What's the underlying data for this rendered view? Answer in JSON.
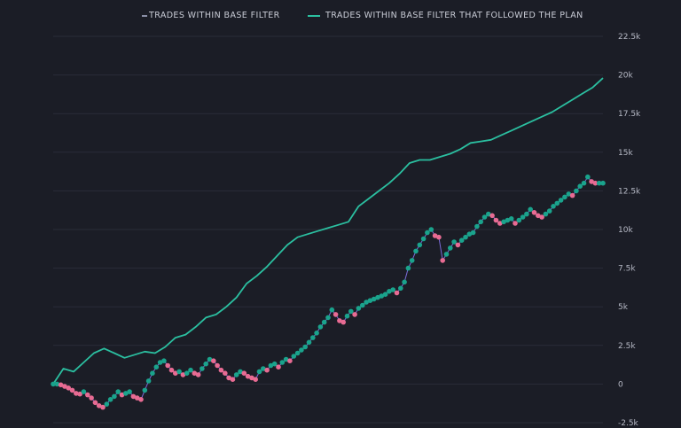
{
  "chart_data": {
    "type": "line",
    "title": "",
    "xlabel": "",
    "ylabel": "",
    "ylim": [
      -2500,
      22500
    ],
    "yticks": [
      {
        "value": -2500,
        "label": "-2.5k"
      },
      {
        "value": 0,
        "label": "0"
      },
      {
        "value": 2500,
        "label": "2.5k"
      },
      {
        "value": 5000,
        "label": "5k"
      },
      {
        "value": 7500,
        "label": "7.5k"
      },
      {
        "value": 10000,
        "label": "10k"
      },
      {
        "value": 12500,
        "label": "12.5k"
      },
      {
        "value": 15000,
        "label": "15k"
      },
      {
        "value": 17500,
        "label": "17.5k"
      },
      {
        "value": 20000,
        "label": "20k"
      },
      {
        "value": 22500,
        "label": "22.5k"
      }
    ],
    "grid": true,
    "legend_position": "top",
    "colors": {
      "background": "#1b1d26",
      "grid": "#2a2d38",
      "plan_line": "#2bbfa0",
      "base_line": "#7b6cd9",
      "gain_marker": "#1aa38c",
      "loss_marker": "#e86b93"
    },
    "series": [
      {
        "name": "TRADES WITHIN BASE FILTER",
        "values": [
          0,
          0,
          -50,
          -150,
          -250,
          -400,
          -600,
          -650,
          -500,
          -700,
          -900,
          -1200,
          -1400,
          -1500,
          -1300,
          -1000,
          -800,
          -500,
          -700,
          -600,
          -500,
          -800,
          -900,
          -1000,
          -400,
          200,
          700,
          1100,
          1400,
          1500,
          1200,
          900,
          700,
          800,
          600,
          700,
          900,
          700,
          600,
          1000,
          1300,
          1600,
          1500,
          1200,
          900,
          700,
          400,
          300,
          600,
          800,
          700,
          500,
          400,
          300,
          800,
          1000,
          900,
          1200,
          1300,
          1100,
          1400,
          1600,
          1500,
          1800,
          2000,
          2200,
          2400,
          2700,
          3000,
          3300,
          3700,
          4000,
          4300,
          4800,
          4500,
          4100,
          4000,
          4400,
          4700,
          4500,
          4900,
          5100,
          5300,
          5400,
          5500,
          5600,
          5700,
          5800,
          6000,
          6100,
          5900,
          6200,
          6600,
          7500,
          8000,
          8600,
          9000,
          9400,
          9800,
          10000,
          9600,
          9500,
          8000,
          8400,
          8800,
          9200,
          9000,
          9300,
          9500,
          9700,
          9800,
          10200,
          10500,
          10800,
          11000,
          10900,
          10600,
          10400,
          10500,
          10600,
          10700,
          10400,
          10600,
          10800,
          11000,
          11300,
          11100,
          10900,
          10800,
          11000,
          11200,
          11500,
          11700,
          11900,
          12100,
          12300,
          12200,
          12500,
          12800,
          13000,
          13400,
          13100,
          13000,
          13000,
          13000
        ]
      },
      {
        "name": "TRADES WITHIN BASE FILTER THAT FOLLOWED THE PLAN",
        "values": [
          0,
          1000,
          800,
          1400,
          2000,
          2300,
          2000,
          1700,
          1900,
          2100,
          2000,
          2400,
          3000,
          3200,
          3700,
          4300,
          4500,
          5000,
          5600,
          6500,
          7000,
          7600,
          8300,
          9000,
          9500,
          9700,
          9900,
          10100,
          10300,
          10500,
          11500,
          12000,
          12500,
          13000,
          13600,
          14300,
          14500,
          14500,
          14700,
          14900,
          15200,
          15600,
          15700,
          15800,
          16100,
          16400,
          16700,
          17000,
          17300,
          17600,
          18000,
          18400,
          18800,
          19200,
          19800
        ]
      }
    ]
  }
}
